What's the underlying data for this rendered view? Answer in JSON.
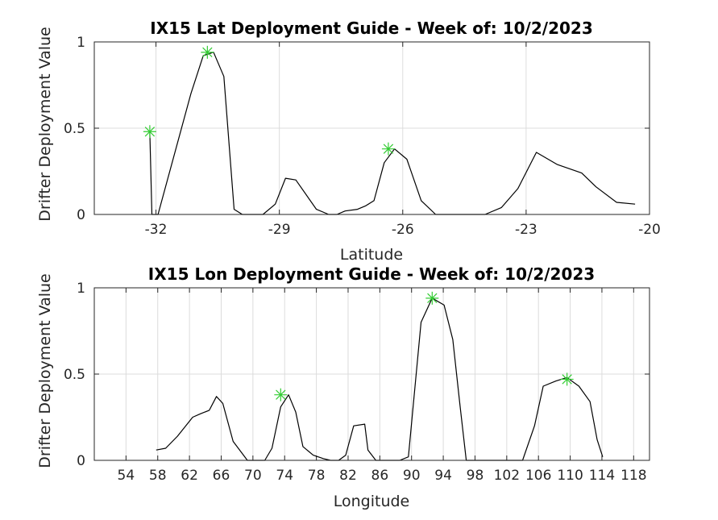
{
  "chart_data": [
    {
      "type": "line",
      "title": "IX15 Lat Deployment Guide - Week of: 10/2/2023",
      "xlabel": "Latitude",
      "ylabel": "Drifter Deployment Value",
      "xlim": [
        -33.5,
        -20
      ],
      "ylim": [
        0,
        1
      ],
      "xticks": [
        -32,
        -29,
        -26,
        -23,
        -20
      ],
      "yticks": [
        0,
        0.5,
        1
      ],
      "ytick_labels": [
        "0",
        "0.5",
        "1"
      ],
      "grid": true,
      "line_color": "#000000",
      "marker_color": "#33cc33",
      "series": [
        {
          "values_x": [
            -32.15,
            -32.1,
            -32.02,
            -31.95,
            -31.15,
            -30.85,
            -30.6,
            -30.35,
            -30.1,
            -29.9,
            -29.4,
            -29.1,
            -28.85,
            -28.6,
            -28.1,
            -27.8,
            -27.6,
            -27.4,
            -27.1,
            -26.9,
            -26.7,
            -26.45,
            -26.2,
            -25.9,
            -25.55,
            -25.2,
            -24.5,
            -24,
            -23.6,
            -23.2,
            -22.75,
            -22.25,
            -21.65,
            -21.3,
            -20.8,
            -20.35
          ],
          "values_y": [
            0.48,
            0.0,
            0.0,
            0.0,
            0.7,
            0.92,
            0.94,
            0.8,
            0.03,
            0.0,
            0.0,
            0.06,
            0.21,
            0.2,
            0.03,
            0.0,
            0.0,
            0.02,
            0.03,
            0.05,
            0.08,
            0.3,
            0.38,
            0.32,
            0.08,
            0.0,
            0.0,
            0.0,
            0.04,
            0.15,
            0.36,
            0.29,
            0.24,
            0.16,
            0.07,
            0.06
          ]
        }
      ],
      "peaks": [
        {
          "x": -32.15,
          "y": 0.48
        },
        {
          "x": -30.75,
          "y": 0.94
        },
        {
          "x": -26.35,
          "y": 0.38
        }
      ]
    },
    {
      "type": "line",
      "title": "IX15 Lon Deployment Guide - Week of: 10/2/2023",
      "xlabel": "Longitude",
      "ylabel": "Drifter Deployment Value",
      "xlim": [
        50,
        120
      ],
      "ylim": [
        0,
        1
      ],
      "xticks": [
        54,
        58,
        62,
        66,
        70,
        74,
        78,
        82,
        86,
        90,
        94,
        98,
        102,
        106,
        110,
        114,
        118
      ],
      "yticks": [
        0,
        0.5,
        1
      ],
      "ytick_labels": [
        "0",
        "0.5",
        "1"
      ],
      "grid": true,
      "line_color": "#000000",
      "marker_color": "#33cc33",
      "series": [
        {
          "values_x": [
            57.8,
            59,
            60.5,
            62.4,
            63.4,
            64.5,
            65.4,
            66.2,
            67.5,
            69.3,
            70.8,
            71.5,
            72.4,
            73.5,
            74.5,
            75.4,
            76.3,
            77.6,
            78.9,
            79.8,
            80.8,
            81.7,
            82.7,
            84.1,
            84.5,
            85.5,
            87.2,
            88.5,
            89.6,
            91.2,
            92.6,
            94.1,
            95.2,
            96.1,
            96.9,
            97.8,
            99,
            102,
            104,
            105.5,
            106.6,
            108.2,
            109.6,
            111.1,
            112.5,
            113.4,
            114.1
          ],
          "values_y": [
            0.06,
            0.07,
            0.14,
            0.25,
            0.27,
            0.29,
            0.37,
            0.33,
            0.11,
            0.0,
            0.0,
            0.0,
            0.07,
            0.31,
            0.38,
            0.28,
            0.08,
            0.03,
            0.01,
            0.0,
            0.0,
            0.03,
            0.2,
            0.21,
            0.06,
            0.0,
            0.0,
            0.0,
            0.02,
            0.8,
            0.94,
            0.9,
            0.7,
            0.32,
            0.0,
            0.0,
            0.0,
            0.0,
            0.0,
            0.2,
            0.43,
            0.46,
            0.48,
            0.43,
            0.34,
            0.12,
            0.02
          ]
        }
      ],
      "peaks": [
        {
          "x": 73.5,
          "y": 0.38
        },
        {
          "x": 92.6,
          "y": 0.94
        },
        {
          "x": 109.6,
          "y": 0.47
        }
      ]
    }
  ]
}
